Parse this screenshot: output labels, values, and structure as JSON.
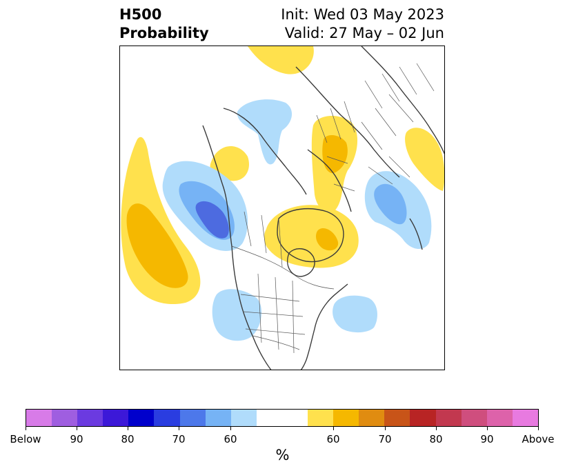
{
  "title": {
    "left_line1": "H500",
    "left_line2": "Probability",
    "right_line1": "Init: Wed 03 May 2023",
    "right_line2": "Valid: 27 May – 02 Jun"
  },
  "colors": {
    "below": [
      "#d87be8",
      "#9f5ee0",
      "#6b3ae0",
      "#3c18d8",
      "#0000cc",
      "#2a3de0",
      "#4d78ea",
      "#76b3f5",
      "#b0dcfb"
    ],
    "neutral": "#ffffff",
    "above": [
      "#ffe14d",
      "#f5b800",
      "#e08c10",
      "#c85418",
      "#b82424",
      "#c2384f",
      "#cf4e7e",
      "#dd62aa",
      "#e87ae0"
    ],
    "coastline": "#3a3a3a"
  },
  "colorbar": {
    "labels": [
      "Below",
      "90",
      "80",
      "70",
      "60",
      "60",
      "70",
      "80",
      "90",
      "Above"
    ],
    "unit": "%"
  }
}
